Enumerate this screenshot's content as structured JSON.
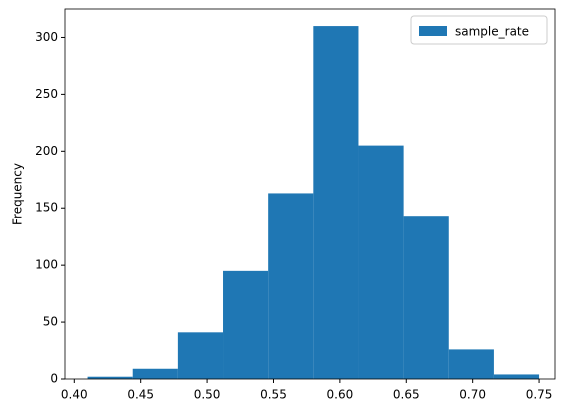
{
  "chart_data": {
    "type": "histogram",
    "y_label": "Frequency",
    "bins": [
      0.41,
      0.444,
      0.478,
      0.512,
      0.546,
      0.58,
      0.614,
      0.648,
      0.682,
      0.716,
      0.75
    ],
    "series": [
      {
        "name": "sample_rate",
        "color": "#1f77b4",
        "values": [
          2,
          9,
          41,
          95,
          163,
          310,
          205,
          143,
          26,
          4
        ]
      }
    ],
    "xlim": [
      0.393,
      0.762
    ],
    "ylim": [
      0,
      325
    ],
    "xticks": [
      {
        "value": 0.4,
        "label": "0.40"
      },
      {
        "value": 0.45,
        "label": "0.45"
      },
      {
        "value": 0.5,
        "label": "0.50"
      },
      {
        "value": 0.55,
        "label": "0.55"
      },
      {
        "value": 0.6,
        "label": "0.60"
      },
      {
        "value": 0.65,
        "label": "0.65"
      },
      {
        "value": 0.7,
        "label": "0.70"
      },
      {
        "value": 0.75,
        "label": "0.75"
      }
    ],
    "yticks": [
      0,
      50,
      100,
      150,
      200,
      250,
      300
    ],
    "legend": "upper right"
  }
}
